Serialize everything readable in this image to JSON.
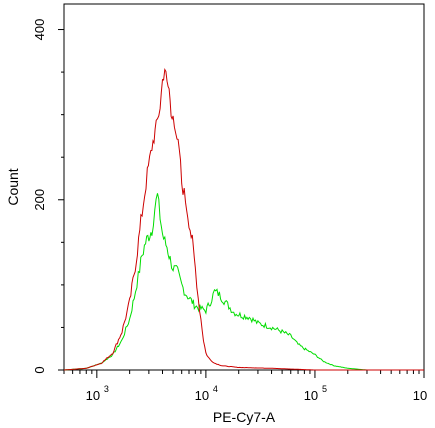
{
  "chart_data": {
    "type": "line",
    "title": "",
    "xlabel": "PE-Cy7-A",
    "ylabel": "Count",
    "x_scale": "log",
    "xlim": [
      500,
      1000000
    ],
    "ylim": [
      0,
      430
    ],
    "x_ticks": [
      {
        "value": 1000,
        "base": "10",
        "exp": "3"
      },
      {
        "value": 10000,
        "base": "10",
        "exp": "4"
      },
      {
        "value": 100000,
        "base": "10",
        "exp": "5"
      },
      {
        "value": 1000000,
        "base": "10",
        "exp": ""
      }
    ],
    "y_ticks": [
      {
        "value": 0,
        "label": "0"
      },
      {
        "value": 200,
        "label": "200"
      },
      {
        "value": 400,
        "label": "400"
      }
    ],
    "grid": false,
    "legend": "none",
    "series": [
      {
        "color": "#cc0000",
        "x": [
          500,
          800,
          1100,
          1400,
          1700,
          2000,
          2300,
          2600,
          2900,
          3200,
          3500,
          3800,
          4000,
          4200,
          4400,
          4600,
          4800,
          5000,
          5300,
          5700,
          6000,
          6500,
          7000,
          7500,
          8000,
          8500,
          9000,
          9500,
          10000,
          10500,
          11000,
          12000,
          14000,
          20000,
          40000,
          100000,
          300000,
          1000000
        ],
        "y": [
          0,
          2,
          8,
          20,
          45,
          80,
          130,
          185,
          230,
          262,
          285,
          310,
          340,
          355,
          335,
          330,
          300,
          305,
          270,
          260,
          220,
          200,
          175,
          150,
          120,
          85,
          60,
          35,
          20,
          15,
          12,
          8,
          5,
          3,
          2,
          0,
          0,
          0
        ]
      },
      {
        "color": "#00dd00",
        "x": [
          500,
          800,
          1100,
          1400,
          1700,
          2000,
          2200,
          2400,
          2600,
          2800,
          3000,
          3200,
          3400,
          3600,
          3800,
          4000,
          4200,
          4400,
          4700,
          5000,
          5500,
          6000,
          6500,
          7000,
          7500,
          8000,
          9000,
          10000,
          11000,
          12000,
          13000,
          15000,
          18000,
          20000,
          25000,
          30000,
          40000,
          50000,
          60000,
          70000,
          80000,
          100000,
          120000,
          150000,
          200000,
          300000,
          1000000
        ],
        "y": [
          0,
          2,
          8,
          18,
          35,
          60,
          85,
          110,
          135,
          150,
          158,
          165,
          190,
          205,
          180,
          160,
          150,
          145,
          130,
          120,
          115,
          100,
          90,
          85,
          80,
          75,
          72,
          70,
          80,
          92,
          90,
          80,
          68,
          65,
          62,
          55,
          50,
          45,
          40,
          30,
          25,
          18,
          10,
          5,
          2,
          0,
          0
        ]
      }
    ]
  }
}
